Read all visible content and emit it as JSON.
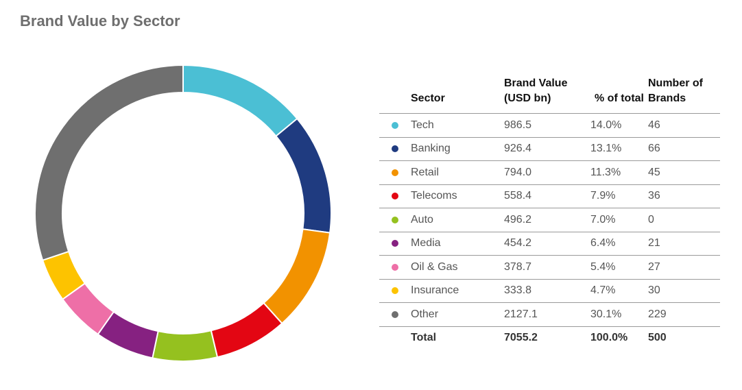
{
  "chart_data": {
    "type": "pie",
    "title": "Brand Value by Sector",
    "columns": {
      "sector": "Sector",
      "value": "Brand Value (USD bn)",
      "pct": "% of total",
      "count": "Number of Brands"
    },
    "series": [
      {
        "name": "Tech",
        "value": 986.5,
        "value_label": "986.5",
        "pct": "14.0%",
        "count": "46",
        "color": "#4bbfd4"
      },
      {
        "name": "Banking",
        "value": 926.4,
        "value_label": "926.4",
        "pct": "13.1%",
        "count": "66",
        "color": "#1f3b80"
      },
      {
        "name": "Retail",
        "value": 794.0,
        "value_label": "794.0",
        "pct": "11.3%",
        "count": "45",
        "color": "#f29200"
      },
      {
        "name": "Telecoms",
        "value": 558.4,
        "value_label": "558.4",
        "pct": "7.9%",
        "count": "36",
        "color": "#e30613"
      },
      {
        "name": "Auto",
        "value": 496.2,
        "value_label": "496.2",
        "pct": "7.0%",
        "count": "0",
        "color": "#95c11f"
      },
      {
        "name": "Media",
        "value": 454.2,
        "value_label": "454.2",
        "pct": "6.4%",
        "count": "21",
        "color": "#862181"
      },
      {
        "name": "Oil & Gas",
        "value": 378.7,
        "value_label": "378.7",
        "pct": "5.4%",
        "count": "27",
        "color": "#ee6fa7"
      },
      {
        "name": "Insurance",
        "value": 333.8,
        "value_label": "333.8",
        "pct": "4.7%",
        "count": "30",
        "color": "#fdc300"
      },
      {
        "name": "Other",
        "value": 2127.1,
        "value_label": "2127.1",
        "pct": "30.1%",
        "count": "229",
        "color": "#6f6f6f"
      }
    ],
    "total": {
      "label": "Total",
      "value": "7055.2",
      "pct": "100.0%",
      "count": "500"
    }
  }
}
